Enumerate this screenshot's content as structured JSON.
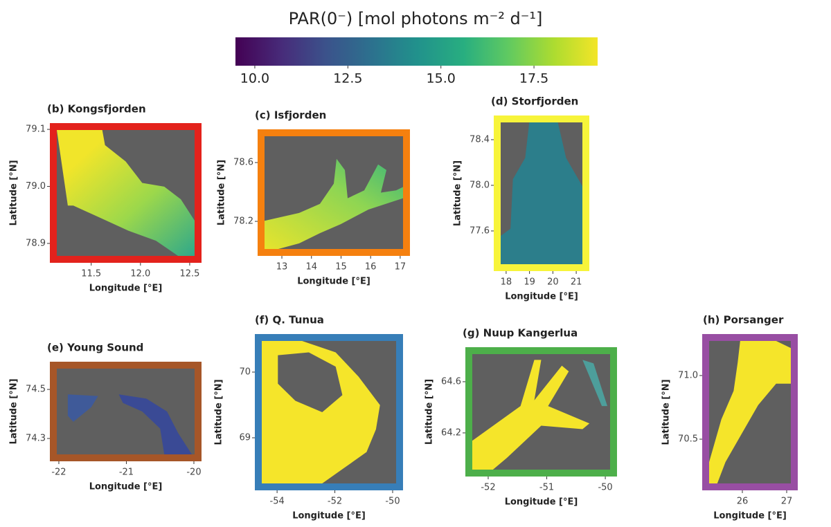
{
  "colorbar": {
    "title": "PAR(0⁻) [mol photons m⁻² d⁻¹]",
    "lim": [
      9.48,
      19.21
    ],
    "ticks": [
      {
        "value": 10,
        "label": "10.0"
      },
      12.5,
      {
        "value": 15,
        "label": "15.0"
      },
      17.5
    ]
  },
  "panels": [
    {
      "title": "(b) Kongsfjorden",
      "xlabel": "Longitude [°E]",
      "ylabel": "Latitude [°N]",
      "border_color": "#e3221c",
      "xlim": [
        11.08,
        12.62
      ],
      "ylim": [
        78.866,
        79.111
      ],
      "xticks": [
        11.5,
        {
          "value": 12,
          "label": "12.0"
        },
        12.5
      ],
      "yticks": [
        79.1,
        {
          "value": 79,
          "label": "79.0"
        },
        78.9
      ]
    },
    {
      "title": "(c) Isfjorden",
      "xlabel": "Longitude [°E]",
      "ylabel": "Latitude [°N]",
      "border_color": "#f5800f",
      "xlim": [
        12.18,
        17.33
      ],
      "ylim": [
        77.965,
        78.826
      ],
      "xticks": [
        13,
        14,
        15,
        16,
        17
      ],
      "yticks": [
        78.6,
        78.2
      ]
    },
    {
      "title": "(d) Storfjorden",
      "xlabel": "Longitude [°E]",
      "ylabel": "Latitude [°N]",
      "border_color": "#f7f43a",
      "xlim": [
        17.47,
        21.56
      ],
      "ylim": [
        77.248,
        78.612
      ],
      "xticks": [
        18,
        19,
        20,
        21
      ],
      "yticks": [
        78.4,
        {
          "value": 78,
          "label": "78.0"
        },
        77.6
      ]
    },
    {
      "title": "(e) Young Sound",
      "xlabel": "Longitude [°E]",
      "ylabel": "Latitude [°N]",
      "border_color": "#a65628",
      "xlim": [
        -22.133,
        -19.887
      ],
      "ylim": [
        74.207,
        74.613
      ],
      "xticks": [
        -22,
        -21,
        -20
      ],
      "yticks": [
        74.5,
        74.3
      ]
    },
    {
      "title": "(f) Q. Tunua",
      "xlabel": "Longitude [°E]",
      "ylabel": "Latitude [°N]",
      "border_color": "#377eb8",
      "xlim": [
        -54.77,
        -49.64
      ],
      "ylim": [
        68.2,
        70.579
      ],
      "xticks": [
        -54,
        -52,
        -50
      ],
      "yticks": [
        70,
        69
      ]
    },
    {
      "title": "(g) Nuup Kangerlua",
      "xlabel": "Longitude [°E]",
      "ylabel": "Latitude [°N]",
      "border_color": "#4daf4a",
      "xlim": [
        -52.39,
        -49.8
      ],
      "ylim": [
        63.859,
        64.87
      ],
      "xticks": [
        -52,
        -51,
        -50
      ],
      "yticks": [
        64.6,
        64.2
      ]
    },
    {
      "title": "(h) Porsanger",
      "xlabel": "Longitude [°E]",
      "ylabel": "Latitude [°N]",
      "border_color": "#984ea3",
      "xlim": [
        25.094,
        27.25
      ],
      "ylim": [
        70.098,
        71.326
      ],
      "xticks": [
        26,
        27
      ],
      "yticks": [
        {
          "value": 71,
          "label": "71.0"
        },
        70.5
      ]
    }
  ]
}
